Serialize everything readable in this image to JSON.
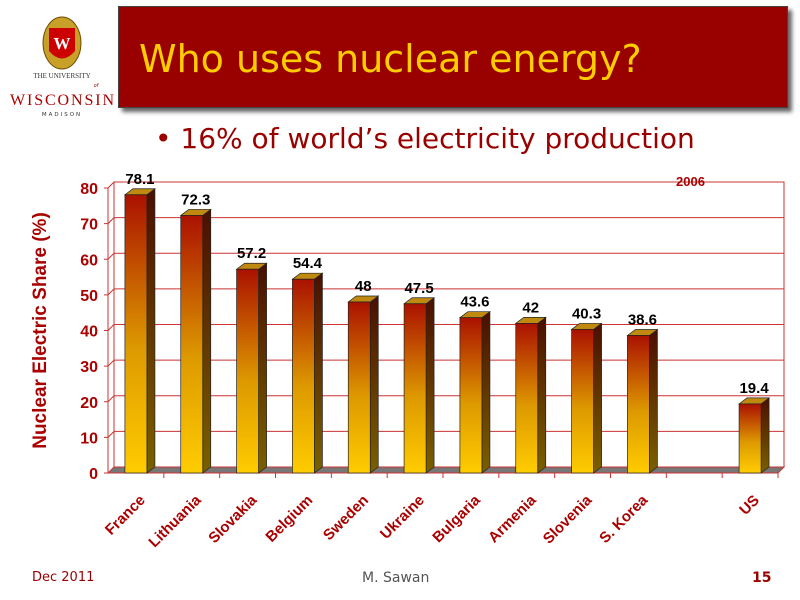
{
  "logo": {
    "line1": "THE UNIVERSITY",
    "of": "of",
    "line2": "WISCONSIN",
    "line3": "MADISON"
  },
  "slide": {
    "title": "Who uses nuclear energy?",
    "bullet": "16% of world’s electricity production",
    "footer_left": "Dec 2011",
    "footer_center": "M. Sawan",
    "page_number": "15"
  },
  "chart_data": {
    "type": "bar",
    "title": "",
    "annotation": "2006",
    "xlabel": "",
    "ylabel": "Nuclear Electric Share (%)",
    "categories": [
      "France",
      "Lithuania",
      "Slovakia",
      "Belgium",
      "Sweden",
      "Ukraine",
      "Bulgaria",
      "Armenia",
      "Slovenia",
      "S. Korea",
      "",
      "US"
    ],
    "values": [
      78.1,
      72.3,
      57.2,
      54.4,
      48,
      47.5,
      43.6,
      42,
      40.3,
      38.6,
      null,
      19.4
    ],
    "value_labels": [
      "78.1",
      "72.3",
      "57.2",
      "54.4",
      "48",
      "47.5",
      "43.6",
      "42",
      "40.3",
      "38.6",
      "",
      "19.4"
    ],
    "ylim": [
      0,
      80
    ],
    "yticks": [
      "0",
      "10",
      "20",
      "30",
      "40",
      "50",
      "60",
      "70",
      "80"
    ],
    "grid": true,
    "colors": {
      "bar_top": "#aa1100",
      "bar_bottom": "#ffcc00",
      "grid": "#cc3333",
      "axis_text": "#aa0000"
    }
  }
}
